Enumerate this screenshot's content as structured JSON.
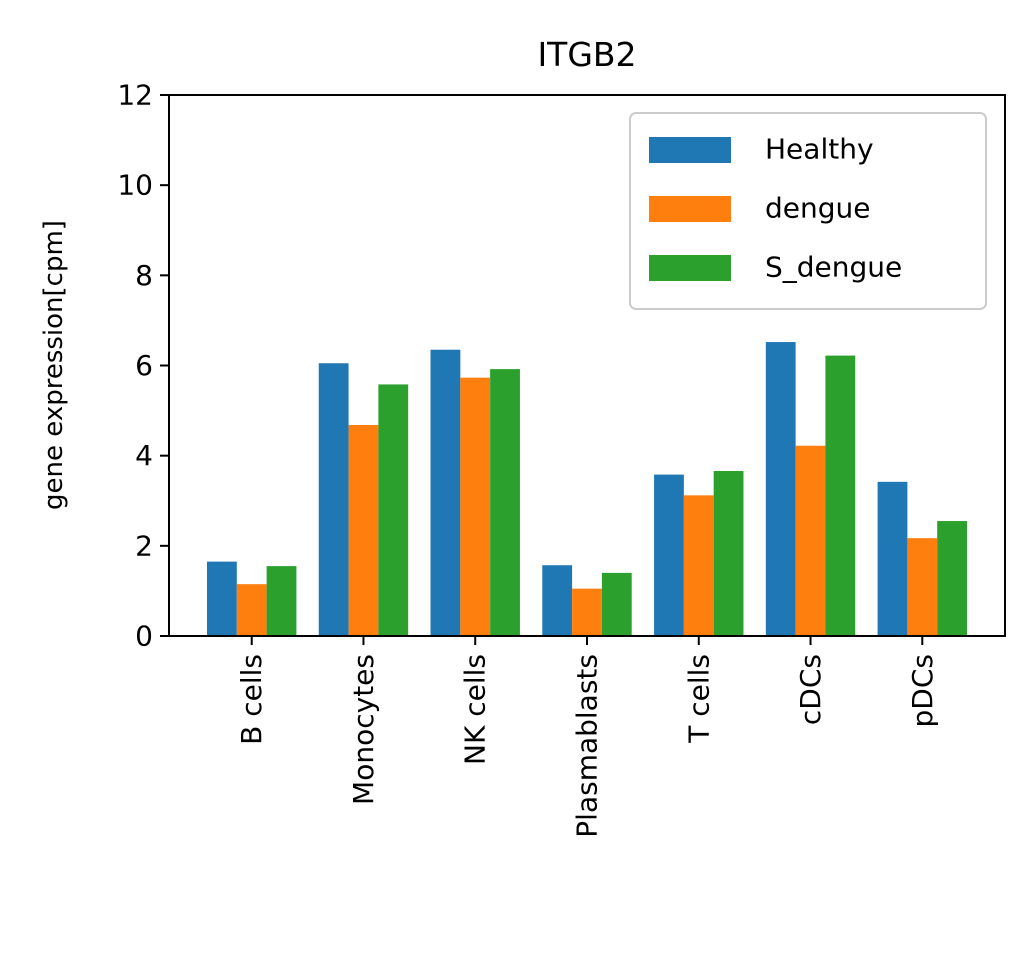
{
  "chart_data": {
    "type": "bar",
    "title": "ITGB2",
    "xlabel": "",
    "ylabel": "gene expression[cpm]",
    "ylim": [
      0,
      12
    ],
    "yticks": [
      0,
      2,
      4,
      6,
      8,
      10,
      12
    ],
    "categories": [
      "B cells",
      "Monocytes",
      "NK cells",
      "Plasmablasts",
      "T cells",
      "cDCs",
      "pDCs"
    ],
    "series": [
      {
        "name": "Healthy",
        "color": "#1f77b4",
        "values": [
          1.65,
          6.05,
          6.35,
          1.57,
          3.58,
          6.52,
          3.42
        ]
      },
      {
        "name": "dengue",
        "color": "#ff7f0e",
        "values": [
          1.15,
          4.68,
          5.73,
          1.05,
          3.12,
          4.22,
          2.17
        ]
      },
      {
        "name": "S_dengue",
        "color": "#2ca02c",
        "values": [
          1.55,
          5.58,
          5.92,
          1.4,
          3.66,
          6.22,
          2.55
        ]
      }
    ],
    "legend": {
      "position": "top-right"
    },
    "grid": false
  }
}
